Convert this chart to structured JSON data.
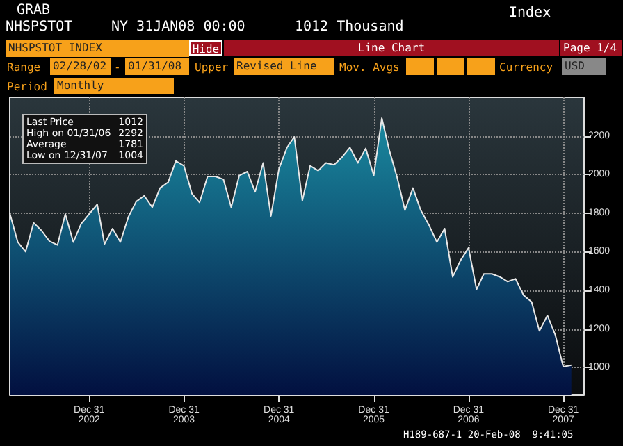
{
  "chart_data": {
    "type": "area",
    "title": "NHSPSTOT INDEX",
    "annotations": [
      "GRAB",
      "NHSPSTOT",
      "NY 31JAN08 00:00",
      "1012 Thousand",
      "Index",
      "Hide",
      "Line Chart",
      "Page 1/4",
      "Range",
      "02/28/02",
      "-",
      "01/31/08",
      "Upper",
      "Revised Line",
      "Mov. Avgs",
      "Currency",
      "USD",
      "Period",
      "Monthly",
      "Last Price",
      "1012",
      "High on 01/31/06",
      "2292",
      "Average",
      "1781",
      "Low on 12/31/07",
      "1004",
      "H189-687-1 20-Feb-08  9:41:05"
    ],
    "x": [
      "2002-02-28",
      "2002-03-31",
      "2002-04-30",
      "2002-05-31",
      "2002-06-30",
      "2002-07-31",
      "2002-08-31",
      "2002-09-30",
      "2002-10-31",
      "2002-11-30",
      "2002-12-31",
      "2003-01-31",
      "2003-02-28",
      "2003-03-31",
      "2003-04-30",
      "2003-05-31",
      "2003-06-30",
      "2003-07-31",
      "2003-08-31",
      "2003-09-30",
      "2003-10-31",
      "2003-11-30",
      "2003-12-31",
      "2004-01-31",
      "2004-02-29",
      "2004-03-31",
      "2004-04-30",
      "2004-05-31",
      "2004-06-30",
      "2004-07-31",
      "2004-08-31",
      "2004-09-30",
      "2004-10-31",
      "2004-11-30",
      "2004-12-31",
      "2005-01-31",
      "2005-02-28",
      "2005-03-31",
      "2005-04-30",
      "2005-05-31",
      "2005-06-30",
      "2005-07-31",
      "2005-08-31",
      "2005-09-30",
      "2005-10-31",
      "2005-11-30",
      "2005-12-31",
      "2006-01-31",
      "2006-02-28",
      "2006-03-31",
      "2006-04-30",
      "2006-05-31",
      "2006-06-30",
      "2006-07-31",
      "2006-08-31",
      "2006-09-30",
      "2006-10-31",
      "2006-11-30",
      "2006-12-31",
      "2007-01-31",
      "2007-02-28",
      "2007-03-31",
      "2007-04-30",
      "2007-05-31",
      "2007-06-30",
      "2007-07-31",
      "2007-08-31",
      "2007-09-30",
      "2007-10-31",
      "2007-11-30",
      "2007-12-31",
      "2008-01-31"
    ],
    "series": [
      {
        "color": "#1a8aa0",
        "values": [
          1800,
          1650,
          1600,
          1750,
          1710,
          1655,
          1635,
          1795,
          1650,
          1745,
          1795,
          1845,
          1640,
          1720,
          1650,
          1780,
          1860,
          1890,
          1830,
          1930,
          1960,
          2070,
          2045,
          1900,
          1855,
          1990,
          1990,
          1975,
          1830,
          1995,
          2015,
          1910,
          2060,
          1785,
          2030,
          2140,
          2195,
          1865,
          2045,
          2020,
          2060,
          2050,
          2090,
          2140,
          2060,
          2135,
          1995,
          2292,
          2130,
          1985,
          1815,
          1930,
          1815,
          1740,
          1650,
          1720,
          1470,
          1555,
          1620,
          1405,
          1485,
          1485,
          1470,
          1445,
          1460,
          1375,
          1340,
          1190,
          1270,
          1170,
          1004,
          1012
        ]
      }
    ],
    "xlim": [
      "2002-02-28",
      "2008-03-20"
    ],
    "xticks": [
      {
        "value": "2002-12-31",
        "label": "Dec 31\n2002"
      },
      {
        "value": "2003-12-31",
        "label": "Dec 31\n2003"
      },
      {
        "value": "2004-12-31",
        "label": "Dec 31\n2004"
      },
      {
        "value": "2005-12-31",
        "label": "Dec 31\n2005"
      },
      {
        "value": "2006-12-31",
        "label": "Dec 31\n2006"
      },
      {
        "value": "2007-12-31",
        "label": "Dec 31\n2007"
      }
    ],
    "ylim": [
      860,
      2400
    ],
    "yticks": [
      1000,
      1200,
      1400,
      1600,
      1800,
      2000,
      2200
    ],
    "grid": true,
    "marker": "none"
  }
}
